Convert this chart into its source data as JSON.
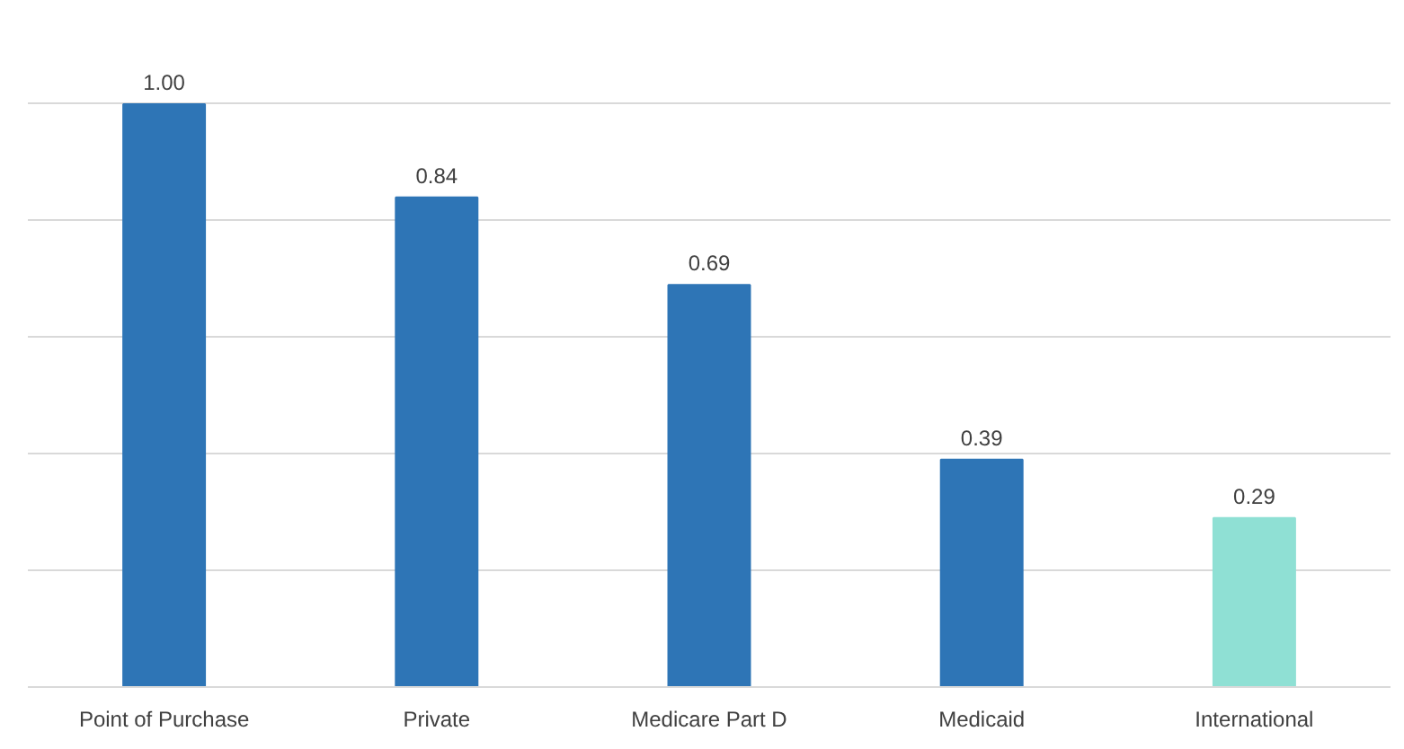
{
  "chart_data": {
    "type": "bar",
    "categories": [
      "Point of Purchase",
      "Private",
      "Medicare Part D",
      "Medicaid",
      "International"
    ],
    "values": [
      1.0,
      0.84,
      0.69,
      0.39,
      0.29
    ],
    "colors": [
      "#2e75b6",
      "#2e75b6",
      "#2e75b6",
      "#2e75b6",
      "#8fe0d4"
    ],
    "value_labels": [
      "1.00",
      "0.84",
      "0.69",
      "0.39",
      "0.29"
    ],
    "grid": "y",
    "tick_labels": "x"
  }
}
